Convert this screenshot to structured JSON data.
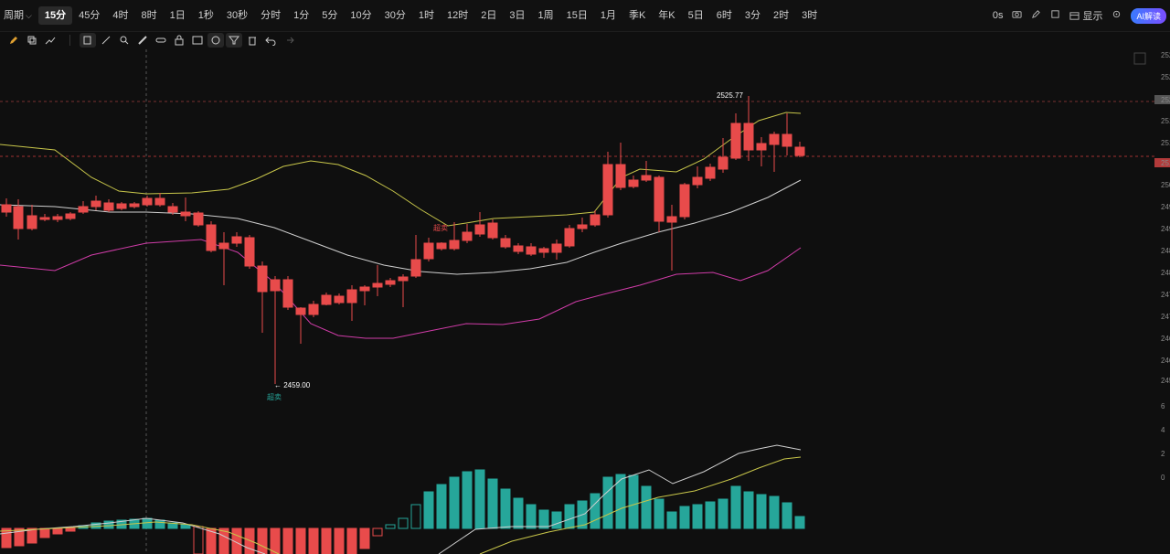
{
  "header": {
    "period_label": "周期",
    "timeframes": [
      "15分",
      "45分",
      "4时",
      "8时",
      "1日",
      "1秒",
      "30秒",
      "分时",
      "1分",
      "5分",
      "10分",
      "30分",
      "1时",
      "12时",
      "2日",
      "3日",
      "1周",
      "15日",
      "1月",
      "季K",
      "年K",
      "5日",
      "6时",
      "3分",
      "2时",
      "3时"
    ],
    "active_timeframe": "15分",
    "countdown": "0s",
    "display_label": "显示",
    "ai_label": "AI解读"
  },
  "chart": {
    "high_marker": "2525.77",
    "low_marker": "2459.00",
    "signal_high": "超买",
    "signal_low": "超卖",
    "signal_mid": "超卖",
    "price_axis": [
      "252",
      "252",
      "252",
      "251",
      "251",
      "251",
      "250",
      "249",
      "249",
      "248",
      "248",
      "247",
      "247",
      "246",
      "246",
      "245",
      "6",
      "4",
      "2",
      "0"
    ],
    "colors": {
      "up": "#26a69a",
      "down": "#e84b4b",
      "upper_band": "#c8c64a",
      "middle_band": "#d0d0d0",
      "lower_band": "#d03ca8",
      "dif": "#d0d0d0",
      "dea": "#c8c64a"
    }
  }
}
